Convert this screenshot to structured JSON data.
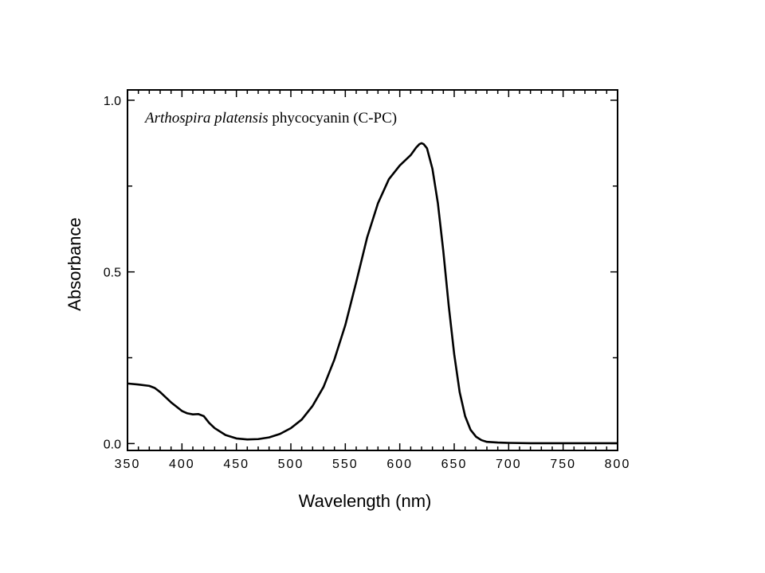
{
  "chart_data": {
    "type": "line",
    "xlabel": "Wavelength (nm)",
    "ylabel": "Absorbance",
    "xlim": [
      350,
      800
    ],
    "ylim": [
      -0.02,
      1.03
    ],
    "x_ticks": [
      350,
      400,
      450,
      500,
      550,
      600,
      650,
      700,
      750,
      800
    ],
    "y_ticks": [
      "0.0",
      "0.5",
      "1.0"
    ],
    "y_tick_values": [
      0.0,
      0.5,
      1.0
    ],
    "grid": false,
    "annotation": {
      "italic_part": "Arthospira platensis",
      "regular_part": " phycocyanin (C-PC)"
    },
    "series": [
      {
        "color": "#000000",
        "x": [
          350,
          360,
          370,
          375,
          380,
          390,
          400,
          405,
          410,
          415,
          420,
          425,
          430,
          440,
          450,
          460,
          470,
          480,
          490,
          500,
          510,
          520,
          530,
          540,
          550,
          560,
          570,
          580,
          590,
          600,
          605,
          610,
          615,
          618,
          620,
          622,
          625,
          630,
          635,
          640,
          645,
          650,
          655,
          660,
          665,
          670,
          675,
          680,
          690,
          700,
          720,
          750,
          800
        ],
        "y": [
          0.175,
          0.172,
          0.168,
          0.162,
          0.15,
          0.12,
          0.095,
          0.088,
          0.085,
          0.086,
          0.08,
          0.06,
          0.045,
          0.025,
          0.015,
          0.012,
          0.013,
          0.018,
          0.028,
          0.045,
          0.07,
          0.11,
          0.165,
          0.245,
          0.345,
          0.47,
          0.6,
          0.7,
          0.77,
          0.81,
          0.825,
          0.84,
          0.862,
          0.872,
          0.875,
          0.872,
          0.86,
          0.8,
          0.7,
          0.56,
          0.4,
          0.26,
          0.15,
          0.08,
          0.04,
          0.02,
          0.01,
          0.005,
          0.003,
          0.002,
          0.001,
          0.001,
          0.001
        ]
      }
    ]
  }
}
